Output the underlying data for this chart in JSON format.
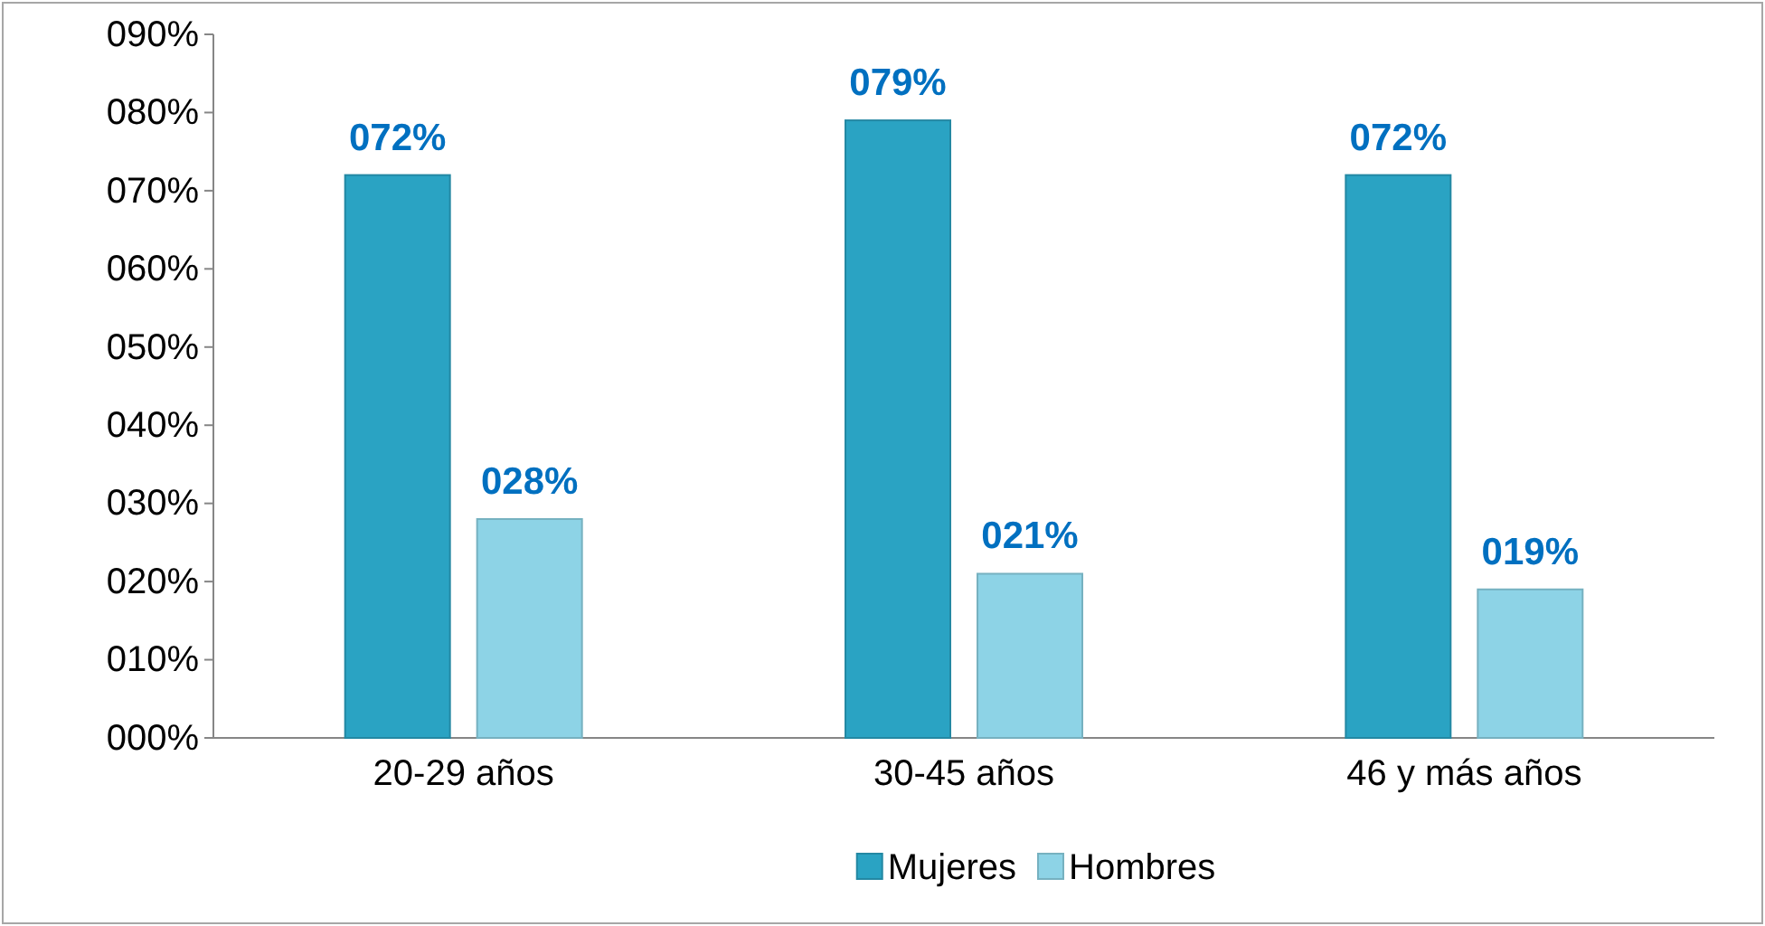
{
  "chart_data": {
    "type": "bar",
    "categories": [
      "20-29 años",
      "30-45 años",
      "46 y más años"
    ],
    "series": [
      {
        "name": "Mujeres",
        "color": "#2aa3c3",
        "values": [
          72,
          79,
          72
        ],
        "value_labels": [
          "072%",
          "079%",
          "072%"
        ]
      },
      {
        "name": "Hombres",
        "color": "#8dd3e6",
        "values": [
          28,
          21,
          19
        ],
        "value_labels": [
          "028%",
          "021%",
          "019%"
        ]
      }
    ],
    "ylim": [
      0,
      90
    ],
    "yticks": [
      {
        "value": 0,
        "label": "000%"
      },
      {
        "value": 10,
        "label": "010%"
      },
      {
        "value": 20,
        "label": "020%"
      },
      {
        "value": 30,
        "label": "030%"
      },
      {
        "value": 40,
        "label": "040%"
      },
      {
        "value": 50,
        "label": "050%"
      },
      {
        "value": 60,
        "label": "060%"
      },
      {
        "value": 70,
        "label": "070%"
      },
      {
        "value": 80,
        "label": "080%"
      },
      {
        "value": 90,
        "label": "090%"
      }
    ],
    "grid": false,
    "legend": "bottom"
  }
}
